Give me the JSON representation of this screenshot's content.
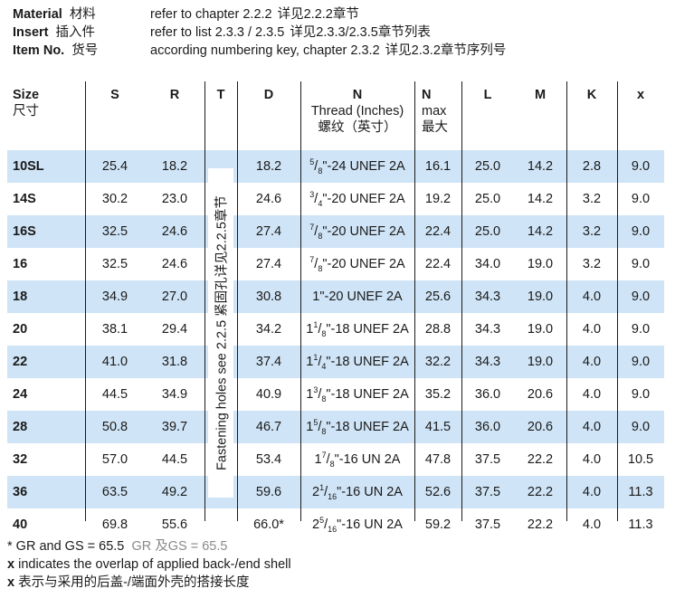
{
  "header": [
    {
      "label": "Material",
      "label_cn": "材料",
      "value": "refer to chapter 2.2.2",
      "value_cn": "详见2.2.2章节"
    },
    {
      "label": "Insert",
      "label_cn": "插入件",
      "value": "refer to list 2.3.3 / 2.3.5",
      "value_cn": "详见2.3.3/2.3.5章节列表"
    },
    {
      "label": "Item No.",
      "label_cn": "货号",
      "value": "according numbering key, chapter 2.3.2",
      "value_cn": "详见2.3.2章节序列号"
    }
  ],
  "columns": {
    "size": {
      "label": "Size",
      "sub": "尺寸"
    },
    "s": {
      "label": "S"
    },
    "r": {
      "label": "R"
    },
    "t": {
      "label": "T"
    },
    "d": {
      "label": "D"
    },
    "n_thread": {
      "label": "N",
      "sub": "Thread (Inches)",
      "sub2": "螺纹（英寸）"
    },
    "n_max": {
      "label": "N",
      "sub": "max",
      "sub2": "最大"
    },
    "l": {
      "label": "L"
    },
    "m": {
      "label": "M"
    },
    "k": {
      "label": "K"
    },
    "x": {
      "label": "x"
    }
  },
  "t_note": "Fastening holes see 2.2.5  紧固孔详见2.2.5章节",
  "rows": [
    {
      "size": "10SL",
      "s": "25.4",
      "r": "18.2",
      "d": "18.2",
      "thread_whole": "",
      "thread_num": "5",
      "thread_den": "8",
      "thread_rest": "\"-24 UNEF 2A",
      "nmax": "16.1",
      "l": "25.0",
      "m": "14.2",
      "k": "2.8",
      "x": "9.0"
    },
    {
      "size": "14S",
      "s": "30.2",
      "r": "23.0",
      "d": "24.6",
      "thread_whole": "",
      "thread_num": "3",
      "thread_den": "4",
      "thread_rest": "\"-20 UNEF 2A",
      "nmax": "19.2",
      "l": "25.0",
      "m": "14.2",
      "k": "3.2",
      "x": "9.0"
    },
    {
      "size": "16S",
      "s": "32.5",
      "r": "24.6",
      "d": "27.4",
      "thread_whole": "",
      "thread_num": "7",
      "thread_den": "8",
      "thread_rest": "\"-20 UNEF 2A",
      "nmax": "22.4",
      "l": "25.0",
      "m": "14.2",
      "k": "3.2",
      "x": "9.0"
    },
    {
      "size": "16",
      "s": "32.5",
      "r": "24.6",
      "d": "27.4",
      "thread_whole": "",
      "thread_num": "7",
      "thread_den": "8",
      "thread_rest": "\"-20 UNEF 2A",
      "nmax": "22.4",
      "l": "34.0",
      "m": "19.0",
      "k": "3.2",
      "x": "9.0"
    },
    {
      "size": "18",
      "s": "34.9",
      "r": "27.0",
      "d": "30.8",
      "thread_whole": "1\"-20 UNEF 2A",
      "thread_num": "",
      "thread_den": "",
      "thread_rest": "",
      "nmax": "25.6",
      "l": "34.3",
      "m": "19.0",
      "k": "4.0",
      "x": "9.0"
    },
    {
      "size": "20",
      "s": "38.1",
      "r": "29.4",
      "d": "34.2",
      "thread_whole": "1",
      "thread_num": "1",
      "thread_den": "8",
      "thread_rest": "\"-18 UNEF 2A",
      "nmax": "28.8",
      "l": "34.3",
      "m": "19.0",
      "k": "4.0",
      "x": "9.0"
    },
    {
      "size": "22",
      "s": "41.0",
      "r": "31.8",
      "d": "37.4",
      "thread_whole": "1",
      "thread_num": "1",
      "thread_den": "4",
      "thread_rest": "\"-18 UNEF 2A",
      "nmax": "32.2",
      "l": "34.3",
      "m": "19.0",
      "k": "4.0",
      "x": "9.0"
    },
    {
      "size": "24",
      "s": "44.5",
      "r": "34.9",
      "d": "40.9",
      "thread_whole": "1",
      "thread_num": "3",
      "thread_den": "8",
      "thread_rest": "\"-18 UNEF 2A",
      "nmax": "35.2",
      "l": "36.0",
      "m": "20.6",
      "k": "4.0",
      "x": "9.0"
    },
    {
      "size": "28",
      "s": "50.8",
      "r": "39.7",
      "d": "46.7",
      "thread_whole": "1",
      "thread_num": "5",
      "thread_den": "8",
      "thread_rest": "\"-18 UNEF 2A",
      "nmax": "41.5",
      "l": "36.0",
      "m": "20.6",
      "k": "4.0",
      "x": "9.0"
    },
    {
      "size": "32",
      "s": "57.0",
      "r": "44.5",
      "d": "53.4",
      "thread_whole": "1",
      "thread_num": "7",
      "thread_den": "8",
      "thread_rest": "\"-16 UN 2A",
      "nmax": "47.8",
      "l": "37.5",
      "m": "22.2",
      "k": "4.0",
      "x": "10.5"
    },
    {
      "size": "36",
      "s": "63.5",
      "r": "49.2",
      "d": "59.6",
      "thread_whole": "2",
      "thread_num": "1",
      "thread_den": "16",
      "thread_rest": "\"-16 UN 2A",
      "nmax": "52.6",
      "l": "37.5",
      "m": "22.2",
      "k": "4.0",
      "x": "11.3"
    },
    {
      "size": "40",
      "s": "69.8",
      "r": "55.6",
      "d": "66.0*",
      "thread_whole": "2",
      "thread_num": "5",
      "thread_den": "16",
      "thread_rest": "\"-16 UN 2A",
      "nmax": "59.2",
      "l": "37.5",
      "m": "22.2",
      "k": "4.0",
      "x": "11.3"
    }
  ],
  "notes": {
    "line1": "* GR and GS = 65.5",
    "line1_cn": "GR 及GS = 65.5",
    "line2_key": "x",
    "line2": "indicates the overlap of applied back-/end shell",
    "line3_key": "x",
    "line3": "表示与采用的后盖-/端面外壳的搭接长度"
  },
  "colors": {
    "stripe": "#cfe4f6",
    "text": "#1a1a1a",
    "muted": "#8a8a8a"
  }
}
